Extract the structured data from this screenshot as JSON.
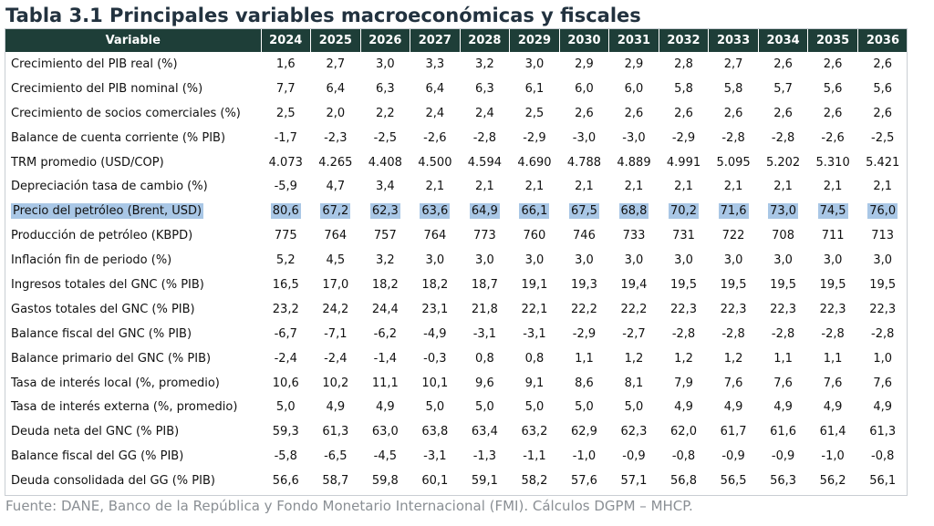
{
  "title": "Tabla 3.1 Principales variables macroeconómicas y fiscales",
  "table": {
    "header_variable": "Variable",
    "years": [
      "2024",
      "2025",
      "2026",
      "2027",
      "2028",
      "2029",
      "2030",
      "2031",
      "2032",
      "2033",
      "2034",
      "2035",
      "2036"
    ],
    "rows": [
      {
        "label": "Crecimiento del PIB real (%)",
        "values": [
          "1,6",
          "2,7",
          "3,0",
          "3,3",
          "3,2",
          "3,0",
          "2,9",
          "2,9",
          "2,8",
          "2,7",
          "2,6",
          "2,6",
          "2,6"
        ]
      },
      {
        "label": "Crecimiento del PIB nominal (%)",
        "values": [
          "7,7",
          "6,4",
          "6,3",
          "6,4",
          "6,3",
          "6,1",
          "6,0",
          "6,0",
          "5,8",
          "5,8",
          "5,7",
          "5,6",
          "5,6"
        ]
      },
      {
        "label": "Crecimiento de socios comerciales (%)",
        "values": [
          "2,5",
          "2,0",
          "2,2",
          "2,4",
          "2,4",
          "2,5",
          "2,6",
          "2,6",
          "2,6",
          "2,6",
          "2,6",
          "2,6",
          "2,6"
        ]
      },
      {
        "label": "Balance de cuenta corriente (% PIB)",
        "values": [
          "-1,7",
          "-2,3",
          "-2,5",
          "-2,6",
          "-2,8",
          "-2,9",
          "-3,0",
          "-3,0",
          "-2,9",
          "-2,8",
          "-2,8",
          "-2,6",
          "-2,5"
        ]
      },
      {
        "label": "TRM promedio (USD/COP)",
        "values": [
          "4.073",
          "4.265",
          "4.408",
          "4.500",
          "4.594",
          "4.690",
          "4.788",
          "4.889",
          "4.991",
          "5.095",
          "5.202",
          "5.310",
          "5.421"
        ]
      },
      {
        "label": "Depreciación tasa de cambio (%)",
        "values": [
          "-5,9",
          "4,7",
          "3,4",
          "2,1",
          "2,1",
          "2,1",
          "2,1",
          "2,1",
          "2,1",
          "2,1",
          "2,1",
          "2,1",
          "2,1"
        ]
      },
      {
        "label": "Precio del petróleo (Brent, USD)",
        "values": [
          "80,6",
          "67,2",
          "62,3",
          "63,6",
          "64,9",
          "66,1",
          "67,5",
          "68,8",
          "70,2",
          "71,6",
          "73,0",
          "74,5",
          "76,0"
        ],
        "highlight": true
      },
      {
        "label": "Producción de petróleo (KBPD)",
        "values": [
          "775",
          "764",
          "757",
          "764",
          "773",
          "760",
          "746",
          "733",
          "731",
          "722",
          "708",
          "711",
          "713"
        ]
      },
      {
        "label": "Inflación fin de periodo (%)",
        "values": [
          "5,2",
          "4,5",
          "3,2",
          "3,0",
          "3,0",
          "3,0",
          "3,0",
          "3,0",
          "3,0",
          "3,0",
          "3,0",
          "3,0",
          "3,0"
        ]
      },
      {
        "label": "Ingresos totales del GNC (% PIB)",
        "values": [
          "16,5",
          "17,0",
          "18,2",
          "18,2",
          "18,7",
          "19,1",
          "19,3",
          "19,4",
          "19,5",
          "19,5",
          "19,5",
          "19,5",
          "19,5"
        ]
      },
      {
        "label": "Gastos totales del GNC (% PIB)",
        "values": [
          "23,2",
          "24,2",
          "24,4",
          "23,1",
          "21,8",
          "22,1",
          "22,2",
          "22,2",
          "22,3",
          "22,3",
          "22,3",
          "22,3",
          "22,3"
        ]
      },
      {
        "label": "Balance fiscal del GNC (% PIB)",
        "values": [
          "-6,7",
          "-7,1",
          "-6,2",
          "-4,9",
          "-3,1",
          "-3,1",
          "-2,9",
          "-2,7",
          "-2,8",
          "-2,8",
          "-2,8",
          "-2,8",
          "-2,8"
        ]
      },
      {
        "label": "Balance primario del GNC (% PIB)",
        "values": [
          "-2,4",
          "-2,4",
          "-1,4",
          "-0,3",
          "0,8",
          "0,8",
          "1,1",
          "1,2",
          "1,2",
          "1,2",
          "1,1",
          "1,1",
          "1,0"
        ]
      },
      {
        "label": "Tasa de interés local (%, promedio)",
        "values": [
          "10,6",
          "10,2",
          "11,1",
          "10,1",
          "9,6",
          "9,1",
          "8,6",
          "8,1",
          "7,9",
          "7,6",
          "7,6",
          "7,6",
          "7,6"
        ]
      },
      {
        "label": "Tasa de interés externa (%, promedio)",
        "values": [
          "5,0",
          "4,9",
          "4,9",
          "5,0",
          "5,0",
          "5,0",
          "5,0",
          "5,0",
          "4,9",
          "4,9",
          "4,9",
          "4,9",
          "4,9"
        ]
      },
      {
        "label": "Deuda neta del GNC (% PIB)",
        "values": [
          "59,3",
          "61,3",
          "63,0",
          "63,8",
          "63,4",
          "63,2",
          "62,9",
          "62,3",
          "62,0",
          "61,7",
          "61,6",
          "61,4",
          "61,3"
        ]
      },
      {
        "label": "Balance fiscal del GG (% PIB)",
        "values": [
          "-5,8",
          "-6,5",
          "-4,5",
          "-3,1",
          "-1,3",
          "-1,1",
          "-1,0",
          "-0,9",
          "-0,8",
          "-0,9",
          "-0,9",
          "-1,0",
          "-0,8"
        ]
      },
      {
        "label": "Deuda consolidada del GG (% PIB)",
        "values": [
          "56,6",
          "58,7",
          "59,8",
          "60,1",
          "59,1",
          "58,2",
          "57,6",
          "57,1",
          "56,8",
          "56,5",
          "56,3",
          "56,2",
          "56,1"
        ]
      }
    ]
  },
  "source": "Fuente: DANE, Banco de la República y Fondo Monetario Internacional (FMI). Cálculos DGPM – MHCP.",
  "colors": {
    "header_bg": "#1e3e38",
    "highlight": "#a9c7e6",
    "title": "#22323f",
    "source": "#8a8f94"
  }
}
